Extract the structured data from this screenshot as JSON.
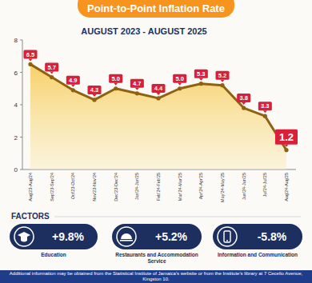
{
  "chart_data": {
    "type": "line",
    "title": "Point-to-Point Inflation Rate",
    "subtitle": "AUGUST 2023 - AUGUST 2025",
    "categories": [
      "Aug'23-Aug'24",
      "Sep'23-Sep'24",
      "Oct'23-Oct'24",
      "Nov'23-Nov'24",
      "Dec'23-Dec'24",
      "Jan'24-Jan'25",
      "Feb'24-Feb'25",
      "Mar'24-Mar'25",
      "Apr'24-Apr'25",
      "May'24-May'25",
      "Jun'24-Jun'25",
      "Jul'24-Jul'25",
      "Aug'24-Aug'25"
    ],
    "values": [
      6.5,
      5.7,
      4.9,
      4.3,
      5.0,
      4.7,
      4.4,
      5.0,
      5.3,
      5.2,
      3.8,
      3.3,
      1.2
    ],
    "value_labels": [
      "6.5",
      "5.7",
      "4.9",
      "4.3",
      "5.0",
      "4.7",
      "4.4",
      "5.0",
      "5.3",
      "5.2",
      "3.8",
      "3.3",
      "1.2"
    ],
    "color": "#8f6210",
    "ylim": [
      0,
      8
    ],
    "yticks": [
      0,
      2,
      4,
      6,
      8
    ],
    "grid": false,
    "data_labels": true
  },
  "factors": {
    "title": "FACTORS",
    "items": [
      {
        "change": "+9.8%",
        "name": "Education"
      },
      {
        "change": "+5.2%",
        "name": "Restaurants and Accommodation Service"
      },
      {
        "change": "-5.8%",
        "name": "Information and Communication"
      }
    ]
  },
  "footer": "Additional information may be obtained from the Statistical Institute of Jamaica's website or from the Institute's library at 7 Cecelio Avenue, Kingston 10."
}
